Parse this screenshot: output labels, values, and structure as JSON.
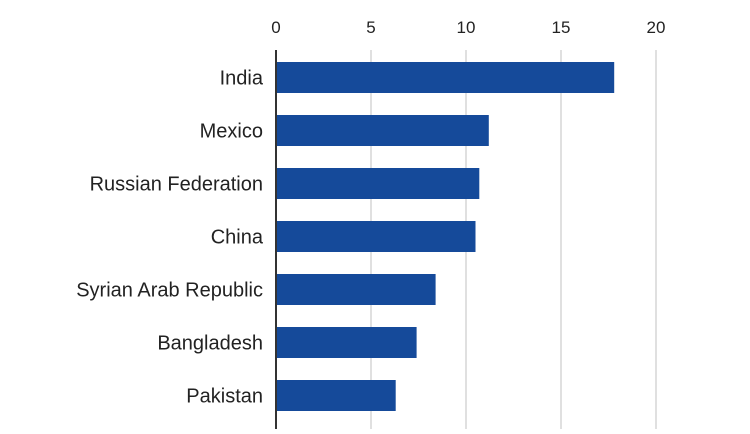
{
  "chart_data": {
    "type": "bar",
    "orientation": "horizontal",
    "title": "",
    "xlabel": "",
    "ylabel": "",
    "categories": [
      "India",
      "Mexico",
      "Russian Federation",
      "China",
      "Syrian Arab Republic",
      "Bangladesh",
      "Pakistan"
    ],
    "values": [
      17.8,
      11.2,
      10.7,
      10.5,
      8.4,
      7.4,
      6.3
    ],
    "xlim": [
      0,
      20
    ],
    "xticks": [
      0,
      5,
      10,
      15,
      20
    ],
    "tick_labels": [
      "0",
      "5",
      "10",
      "15",
      "20"
    ],
    "grid": true,
    "axis_position": "top",
    "bar_color": "#154A9A",
    "grid_color": "#d6d6d6"
  }
}
